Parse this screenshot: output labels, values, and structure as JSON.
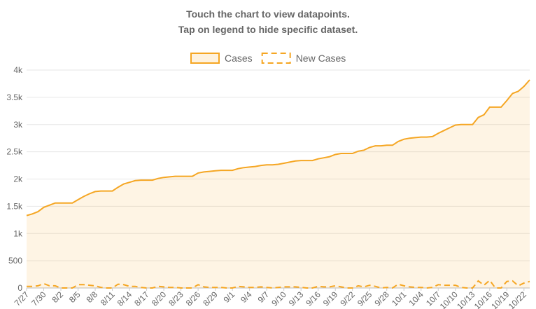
{
  "header": {
    "lines": [
      "Touch the chart to view datapoints.",
      "Tap on legend to hide specific dataset."
    ]
  },
  "chart_data": {
    "type": "line",
    "categories": [
      "7/27",
      null,
      null,
      "7/30",
      null,
      null,
      "8/2",
      null,
      null,
      "8/5",
      null,
      null,
      "8/8",
      null,
      null,
      "8/11",
      null,
      null,
      "8/14",
      null,
      null,
      "8/17",
      null,
      null,
      "8/20",
      null,
      null,
      "8/23",
      null,
      null,
      "8/26",
      null,
      null,
      "8/29",
      null,
      null,
      "9/1",
      null,
      null,
      "9/4",
      null,
      null,
      "9/7",
      null,
      null,
      "9/10",
      null,
      null,
      "9/13",
      null,
      null,
      "9/16",
      null,
      null,
      "9/19",
      null,
      null,
      "9/22",
      null,
      null,
      "9/25",
      null,
      null,
      "9/28",
      null,
      null,
      "10/1",
      null,
      null,
      "10/4",
      null,
      null,
      "10/7",
      null,
      null,
      "10/10",
      null,
      null,
      "10/13",
      null,
      null,
      "10/16",
      null,
      null,
      "10/19",
      null,
      null,
      "10/22",
      null
    ],
    "series": [
      {
        "name": "Cases",
        "color": "#f5a623",
        "fill": true,
        "dashed": false,
        "values": [
          1330,
          1360,
          1400,
          1480,
          1520,
          1560,
          1560,
          1560,
          1560,
          1620,
          1680,
          1730,
          1770,
          1780,
          1780,
          1780,
          1850,
          1910,
          1940,
          1970,
          1980,
          1980,
          1980,
          2010,
          2030,
          2040,
          2050,
          2050,
          2050,
          2050,
          2110,
          2130,
          2140,
          2150,
          2160,
          2160,
          2160,
          2190,
          2210,
          2220,
          2230,
          2250,
          2260,
          2260,
          2270,
          2290,
          2310,
          2330,
          2340,
          2340,
          2340,
          2370,
          2390,
          2410,
          2450,
          2470,
          2470,
          2470,
          2510,
          2530,
          2580,
          2610,
          2610,
          2620,
          2620,
          2690,
          2730,
          2750,
          2760,
          2770,
          2770,
          2780,
          2840,
          2890,
          2940,
          2990,
          3000,
          3000,
          3000,
          3130,
          3180,
          3320,
          3320,
          3320,
          3440,
          3570,
          3610,
          3700,
          3820
        ]
      },
      {
        "name": "New Cases",
        "color": "#f5a623",
        "fill": false,
        "dashed": true,
        "values": [
          30,
          30,
          40,
          80,
          40,
          40,
          0,
          0,
          0,
          60,
          60,
          50,
          40,
          10,
          0,
          0,
          70,
          60,
          30,
          30,
          10,
          0,
          0,
          30,
          20,
          10,
          10,
          0,
          0,
          0,
          60,
          20,
          10,
          10,
          10,
          0,
          0,
          30,
          20,
          10,
          10,
          20,
          10,
          0,
          10,
          20,
          20,
          20,
          10,
          0,
          0,
          30,
          20,
          20,
          40,
          20,
          0,
          0,
          40,
          20,
          50,
          30,
          0,
          10,
          0,
          70,
          40,
          20,
          10,
          10,
          0,
          10,
          60,
          50,
          50,
          50,
          10,
          0,
          0,
          130,
          50,
          140,
          0,
          0,
          120,
          130,
          40,
          90,
          120
        ]
      }
    ],
    "ylim": [
      0,
      4000
    ],
    "yticks": [
      0,
      500,
      {
        "value": 1000,
        "label": "1k"
      },
      {
        "value": 1500,
        "label": "1.5k"
      },
      {
        "value": 2000,
        "label": "2k"
      },
      {
        "value": 2500,
        "label": "2.5k"
      },
      {
        "value": 3000,
        "label": "3k"
      },
      {
        "value": 3500,
        "label": "3.5k"
      },
      {
        "value": 4000,
        "label": "4k"
      }
    ],
    "grid": true,
    "legend": "top"
  }
}
